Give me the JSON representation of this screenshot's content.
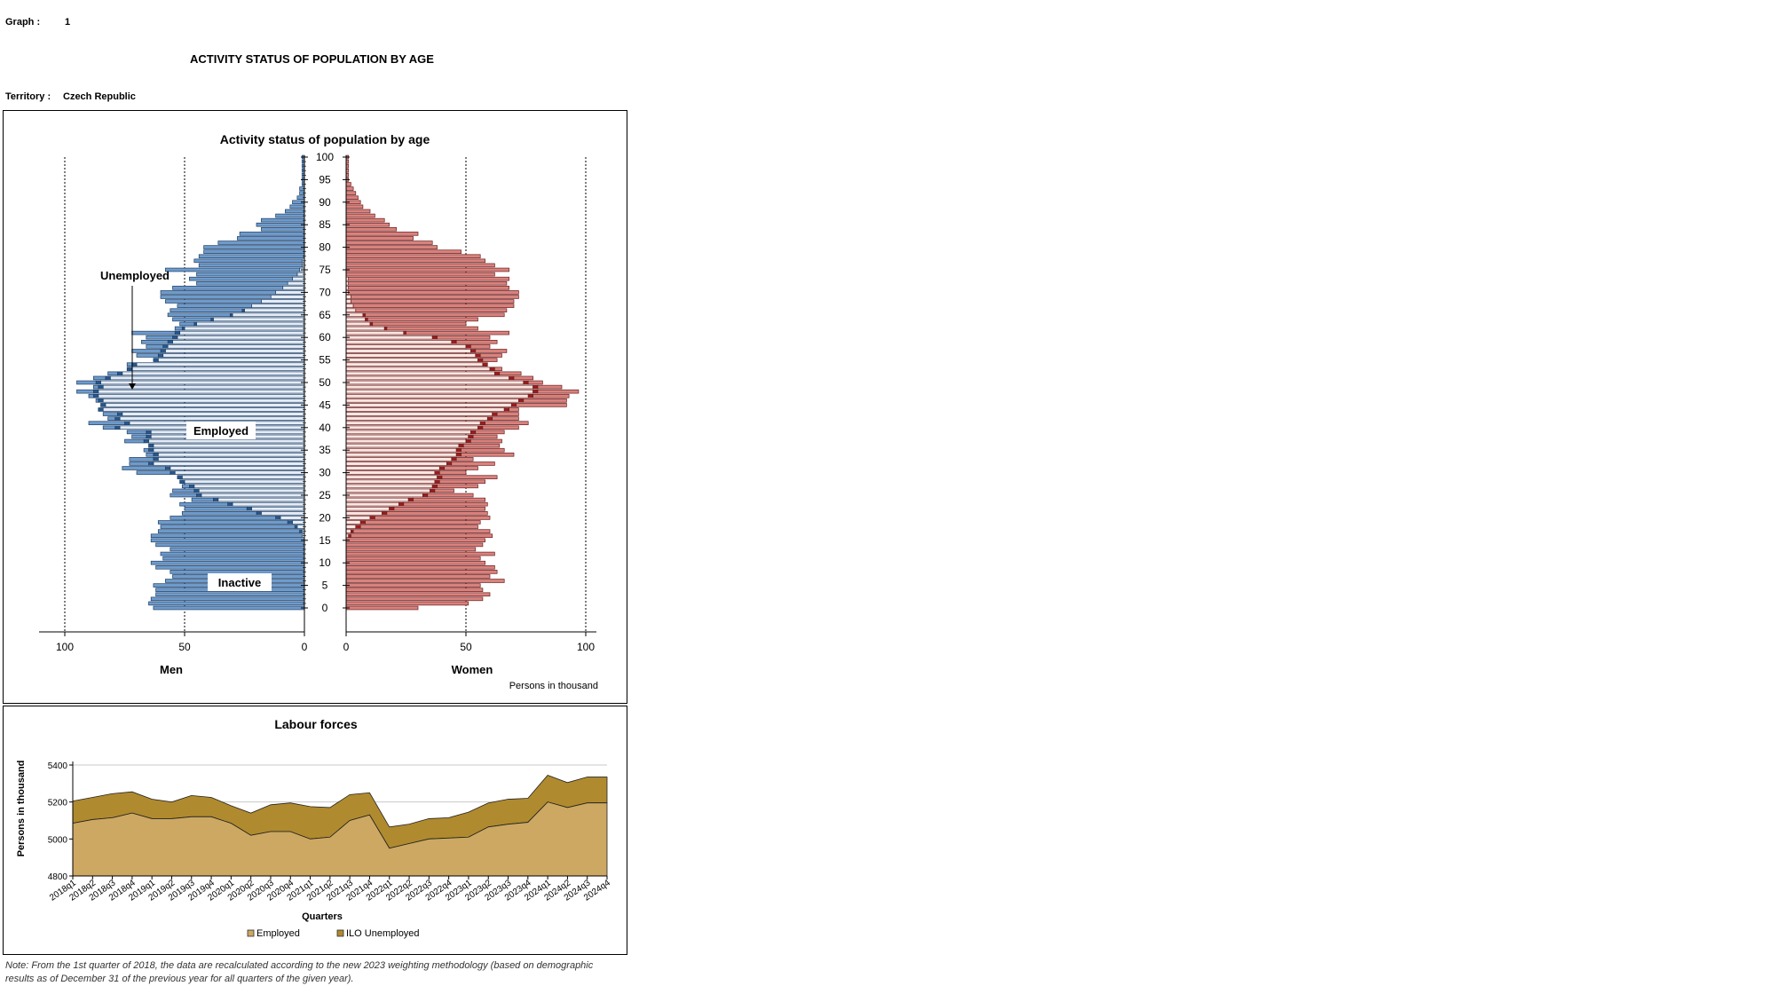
{
  "header": {
    "graph_label": "Graph :",
    "graph_number": "1",
    "main_title": "ACTIVITY STATUS OF POPULATION BY AGE",
    "territory_label": "Territory :",
    "territory_value": "Czech Republic"
  },
  "note": {
    "line1": "Note: From the 1st quarter of 2018, the data are recalculated according to the new 2023 weighting methodology (based on demographic",
    "line2": "results as of December 31 of the previous year for all quarters of the given year)."
  },
  "colors": {
    "men_inactive": "#6e9bcb",
    "men_employed": "#e4ecf6",
    "men_unemployed": "#27578c",
    "women_inactive": "#d9827d",
    "women_employed": "#fbe6e1",
    "women_unemployed": "#9b1c1c",
    "labour_employed": "#cca862",
    "labour_unemployed": "#b08a2e"
  },
  "chart_data": [
    {
      "type": "bar",
      "title": "Activity status of population by age",
      "left_label": "Men",
      "right_label": "Women",
      "unit_label": "Persons in thousand",
      "age_ticks": [
        0,
        5,
        10,
        15,
        20,
        25,
        30,
        35,
        40,
        45,
        50,
        55,
        60,
        65,
        70,
        75,
        80,
        85,
        90,
        95,
        100
      ],
      "x_ticks_men": [
        "100",
        "50",
        "0"
      ],
      "x_ticks_women": [
        "0",
        "50",
        "100"
      ],
      "xlim": [
        0,
        110
      ],
      "annotations": {
        "unemployed": "Unemployed",
        "employed": "Employed",
        "inactive": "Inactive"
      },
      "men_total": [
        63,
        65,
        64,
        62,
        62,
        63,
        58,
        55,
        56,
        62,
        64,
        59,
        60,
        56,
        62,
        64,
        64,
        61,
        60,
        61,
        56,
        51,
        50,
        52,
        47,
        56,
        55,
        51,
        50,
        53,
        70,
        76,
        73,
        73,
        66,
        67,
        63,
        75,
        72,
        74,
        84,
        90,
        82,
        84,
        83,
        82,
        87,
        90,
        95,
        88,
        95,
        88,
        82,
        72,
        74,
        62,
        70,
        72,
        66,
        68,
        66,
        72,
        54,
        52,
        55,
        57,
        56,
        53,
        58,
        60,
        60,
        55,
        45,
        48,
        45,
        58,
        44,
        46,
        44,
        42,
        42,
        36,
        28,
        27,
        18,
        20,
        18,
        12,
        8,
        6,
        5,
        3,
        2,
        2,
        1,
        1,
        1,
        1,
        1,
        1,
        1
      ],
      "men_employed": [
        0,
        0,
        0,
        0,
        0,
        0,
        0,
        0,
        0,
        0,
        0,
        0,
        0,
        0,
        0,
        0,
        1,
        1,
        3,
        5,
        10,
        18,
        22,
        30,
        36,
        43,
        44,
        46,
        50,
        51,
        54,
        56,
        63,
        61,
        61,
        63,
        63,
        65,
        64,
        64,
        77,
        73,
        77,
        76,
        84,
        83,
        84,
        86,
        86,
        84,
        85,
        81,
        76,
        72,
        70,
        61,
        59,
        58,
        57,
        55,
        53,
        52,
        50,
        45,
        38,
        30,
        25,
        22,
        18,
        14,
        12,
        9,
        7,
        5,
        3,
        2,
        1,
        1,
        0,
        0,
        0,
        0,
        0,
        0,
        0,
        0,
        0,
        0,
        0,
        0,
        0,
        0,
        0,
        0,
        0,
        0,
        0,
        0,
        0,
        0,
        0
      ],
      "men_unemployed": [
        0,
        0,
        0,
        0,
        0,
        0,
        0,
        0,
        0,
        0,
        0,
        0,
        0,
        0,
        0,
        0,
        0,
        1,
        1,
        2,
        2,
        2,
        2,
        2,
        2,
        2,
        2,
        2,
        2,
        2,
        2,
        2,
        2,
        2,
        2,
        2,
        2,
        2,
        2,
        2,
        2,
        2,
        2,
        2,
        2,
        2,
        2,
        2,
        2,
        2,
        2,
        2,
        2,
        2,
        2,
        2,
        2,
        2,
        2,
        2,
        2,
        2,
        1,
        1,
        1,
        1,
        1,
        0,
        0,
        0,
        0,
        0,
        0,
        0,
        0,
        0,
        0,
        0,
        0,
        0,
        0,
        0,
        0,
        0,
        0,
        0,
        0,
        0,
        0,
        0,
        0,
        0,
        0,
        0,
        0,
        0,
        0,
        0,
        0,
        0,
        0
      ],
      "women_total": [
        30,
        51,
        57,
        60,
        57,
        56,
        66,
        60,
        63,
        62,
        58,
        56,
        62,
        54,
        57,
        58,
        61,
        60,
        55,
        56,
        60,
        59,
        58,
        59,
        58,
        53,
        45,
        55,
        58,
        63,
        50,
        55,
        62,
        53,
        70,
        66,
        64,
        65,
        63,
        66,
        72,
        76,
        72,
        72,
        72,
        92,
        92,
        93,
        97,
        90,
        82,
        78,
        73,
        65,
        58,
        63,
        65,
        67,
        60,
        63,
        60,
        68,
        55,
        50,
        55,
        66,
        67,
        70,
        70,
        72,
        72,
        68,
        67,
        68,
        62,
        68,
        62,
        58,
        56,
        48,
        38,
        36,
        28,
        30,
        21,
        18,
        16,
        12,
        10,
        7,
        6,
        5,
        4,
        3,
        2,
        1,
        1,
        1,
        1,
        1,
        1
      ],
      "women_employed": [
        0,
        0,
        0,
        0,
        0,
        0,
        0,
        0,
        0,
        0,
        0,
        0,
        0,
        0,
        0,
        0,
        1,
        2,
        4,
        6,
        10,
        15,
        18,
        22,
        26,
        32,
        35,
        36,
        37,
        38,
        37,
        39,
        42,
        44,
        46,
        46,
        47,
        50,
        51,
        52,
        55,
        56,
        59,
        61,
        66,
        69,
        72,
        76,
        78,
        78,
        74,
        68,
        62,
        60,
        57,
        55,
        54,
        52,
        50,
        44,
        36,
        24,
        16,
        10,
        8,
        7,
        4,
        3,
        2,
        2,
        1,
        1,
        1,
        1,
        0,
        0,
        0,
        0,
        0,
        0,
        0,
        0,
        0,
        0,
        0,
        0,
        0,
        0,
        0,
        0,
        0,
        0,
        0,
        0,
        0,
        0,
        0,
        0,
        0,
        0,
        0
      ],
      "women_unemployed": [
        0,
        0,
        0,
        0,
        0,
        0,
        0,
        0,
        0,
        0,
        0,
        0,
        0,
        0,
        0,
        0,
        1,
        1,
        2,
        2,
        2,
        2,
        2,
        2,
        2,
        2,
        2,
        2,
        2,
        2,
        2,
        2,
        2,
        2,
        2,
        2,
        2,
        2,
        2,
        2,
        2,
        2,
        2,
        2,
        2,
        2,
        2,
        2,
        2,
        2,
        2,
        2,
        2,
        2,
        2,
        2,
        2,
        2,
        2,
        2,
        2,
        1,
        1,
        1,
        1,
        1,
        0,
        0,
        0,
        0,
        0,
        0,
        0,
        0,
        0,
        0,
        0,
        0,
        0,
        0,
        0,
        0,
        0,
        0,
        0,
        0,
        0,
        0,
        0,
        0,
        0,
        0,
        0,
        0,
        0,
        0,
        0,
        0,
        0,
        0,
        0
      ]
    },
    {
      "type": "area",
      "title": "Labour forces",
      "xlabel": "Quarters",
      "ylabel": "Persons in thousand",
      "ylim": [
        4800,
        5400
      ],
      "y_ticks": [
        4800,
        5000,
        5200,
        5400
      ],
      "categories": [
        "2018q1",
        "2018q2",
        "2018q3",
        "2018q4",
        "2019q1",
        "2019q2",
        "2019q3",
        "2019q4",
        "2020q1",
        "2020q2",
        "2020q3",
        "2020q4",
        "2021q1",
        "2021q2",
        "2021q3",
        "2021q4",
        "2022q1",
        "2022q2",
        "2022q3",
        "2022q4",
        "2023q1",
        "2023q2",
        "2023q3",
        "2023q4",
        "2024q1",
        "2024q2",
        "2024q3",
        "2024q4"
      ],
      "series": [
        {
          "name": "Employed",
          "values": [
            5085,
            5105,
            5115,
            5140,
            5110,
            5110,
            5120,
            5120,
            5085,
            5020,
            5040,
            5040,
            5000,
            5010,
            5100,
            5130,
            4950,
            4975,
            5000,
            5005,
            5010,
            5065,
            5080,
            5090,
            5200,
            5170,
            5195,
            5195
          ]
        },
        {
          "name": "ILO Unemployed",
          "values": [
            5205,
            5225,
            5245,
            5255,
            5215,
            5200,
            5235,
            5225,
            5180,
            5140,
            5185,
            5195,
            5175,
            5170,
            5240,
            5250,
            5065,
            5080,
            5110,
            5115,
            5145,
            5195,
            5215,
            5220,
            5345,
            5305,
            5335,
            5335
          ]
        }
      ]
    }
  ]
}
